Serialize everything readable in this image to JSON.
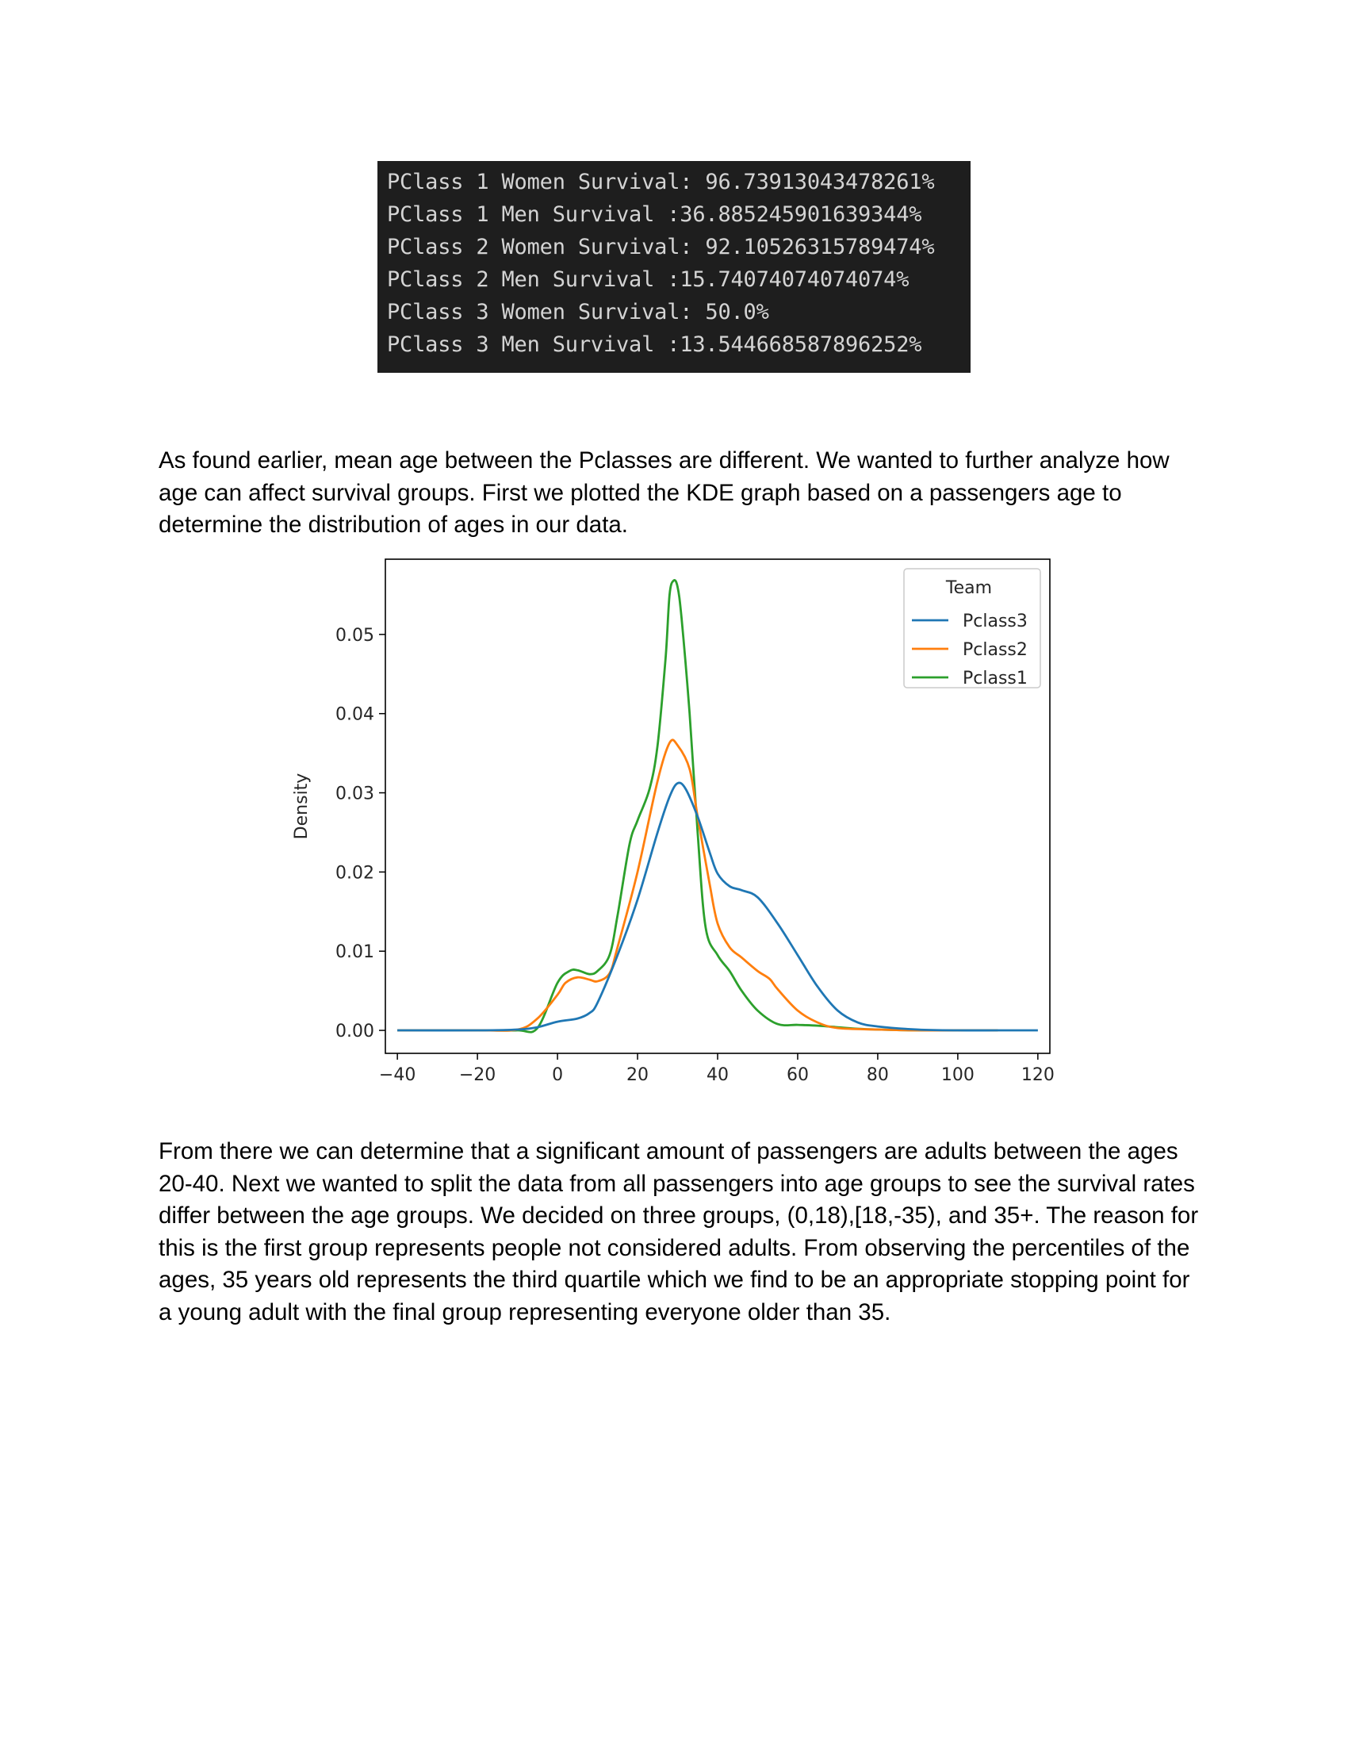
{
  "console": {
    "lines": [
      "PClass 1 Women Survival: 96.73913043478261%",
      "PClass 1 Men Survival :36.885245901639344%",
      "PClass 2 Women Survival: 92.10526315789474%",
      "PClass 2 Men Survival :15.74074074074074%",
      "PClass 3 Women Survival: 50.0%",
      "PClass 3 Men Survival :13.544668587896252%"
    ]
  },
  "paragraphs": {
    "p1": "As found earlier, mean age between the Pclasses are different. We wanted to further analyze how age can affect survival groups. First we plotted the KDE graph based on a passengers age to determine the distribution of ages in our data.",
    "p2": "From there we can determine that a significant amount of passengers are adults between the ages 20-40. Next we wanted to split the data from all passengers into age groups to see the survival rates differ between the age groups. We decided on three groups, (0,18),[18,-35), and 35+. The reason for this is the first group represents people not considered adults. From observing the percentiles of the ages, 35 years old represents the third quartile which we find to be an appropriate stopping point for a young adult with the final group representing everyone older than 35."
  },
  "chart_data": {
    "type": "line",
    "title": "",
    "xlabel": "",
    "ylabel": "Density",
    "xlim": [
      -43,
      123
    ],
    "ylim": [
      -0.0029,
      0.0595
    ],
    "xticks": [
      -40,
      -20,
      0,
      20,
      40,
      60,
      80,
      100,
      120
    ],
    "xtick_labels": [
      "−40",
      "−20",
      "0",
      "20",
      "40",
      "60",
      "80",
      "100",
      "120"
    ],
    "yticks": [
      0.0,
      0.01,
      0.02,
      0.03,
      0.04,
      0.05
    ],
    "ytick_labels": [
      "0.00",
      "0.01",
      "0.02",
      "0.03",
      "0.04",
      "0.05"
    ],
    "grid": false,
    "legend": {
      "title": "Team",
      "position": "top-right"
    },
    "series": [
      {
        "name": "Pclass3",
        "color": "#1f77b4",
        "points": [
          [
            -40,
            0
          ],
          [
            -20,
            0
          ],
          [
            -10,
            0.0001
          ],
          [
            -5,
            0.0004
          ],
          [
            0,
            0.0011
          ],
          [
            5,
            0.0015
          ],
          [
            8,
            0.0022
          ],
          [
            10,
            0.0035
          ],
          [
            15,
            0.0095
          ],
          [
            20,
            0.0165
          ],
          [
            25,
            0.025
          ],
          [
            28,
            0.0295
          ],
          [
            30,
            0.0312
          ],
          [
            32,
            0.0305
          ],
          [
            35,
            0.027
          ],
          [
            38,
            0.0225
          ],
          [
            40,
            0.0198
          ],
          [
            43,
            0.0182
          ],
          [
            46,
            0.0177
          ],
          [
            50,
            0.0168
          ],
          [
            55,
            0.0135
          ],
          [
            60,
            0.0095
          ],
          [
            65,
            0.0055
          ],
          [
            70,
            0.0025
          ],
          [
            75,
            0.001
          ],
          [
            80,
            0.0005
          ],
          [
            90,
            0.0001
          ],
          [
            100,
            0
          ],
          [
            110,
            0
          ],
          [
            120,
            0
          ]
        ]
      },
      {
        "name": "Pclass2",
        "color": "#ff7f0e",
        "points": [
          [
            -40,
            0
          ],
          [
            -20,
            0
          ],
          [
            -10,
            0.0001
          ],
          [
            -5,
            0.0015
          ],
          [
            0,
            0.0045
          ],
          [
            2,
            0.006
          ],
          [
            5,
            0.0067
          ],
          [
            8,
            0.0064
          ],
          [
            10,
            0.0062
          ],
          [
            13,
            0.0072
          ],
          [
            15,
            0.0105
          ],
          [
            20,
            0.02
          ],
          [
            25,
            0.0315
          ],
          [
            28,
            0.0363
          ],
          [
            30,
            0.036
          ],
          [
            33,
            0.033
          ],
          [
            35,
            0.027
          ],
          [
            38,
            0.0185
          ],
          [
            40,
            0.0135
          ],
          [
            43,
            0.0105
          ],
          [
            46,
            0.0092
          ],
          [
            50,
            0.0075
          ],
          [
            53,
            0.0065
          ],
          [
            55,
            0.0052
          ],
          [
            60,
            0.0025
          ],
          [
            65,
            0.001
          ],
          [
            70,
            0.0003
          ],
          [
            80,
            0.0001
          ],
          [
            90,
            0
          ],
          [
            100,
            0
          ],
          [
            110,
            0
          ]
        ]
      },
      {
        "name": "Pclass1",
        "color": "#2ca02c",
        "points": [
          [
            -40,
            0
          ],
          [
            -20,
            0
          ],
          [
            -10,
            0
          ],
          [
            -5,
            0.0003
          ],
          [
            0,
            0.006
          ],
          [
            3,
            0.0075
          ],
          [
            5,
            0.0076
          ],
          [
            8,
            0.0071
          ],
          [
            10,
            0.0075
          ],
          [
            13,
            0.0095
          ],
          [
            15,
            0.0145
          ],
          [
            18,
            0.0235
          ],
          [
            20,
            0.0265
          ],
          [
            23,
            0.0305
          ],
          [
            25,
            0.036
          ],
          [
            27,
            0.047
          ],
          [
            28,
            0.055
          ],
          [
            29,
            0.0568
          ],
          [
            30,
            0.056
          ],
          [
            31,
            0.052
          ],
          [
            33,
            0.04
          ],
          [
            35,
            0.025
          ],
          [
            37,
            0.013
          ],
          [
            40,
            0.0095
          ],
          [
            43,
            0.0075
          ],
          [
            46,
            0.005
          ],
          [
            50,
            0.0025
          ],
          [
            55,
            0.0008
          ],
          [
            60,
            0.0007
          ],
          [
            65,
            0.0006
          ],
          [
            70,
            0.0004
          ],
          [
            75,
            0.0002
          ],
          [
            80,
            0.0001
          ],
          [
            90,
            0
          ],
          [
            100,
            0
          ],
          [
            110,
            0
          ]
        ]
      }
    ]
  }
}
